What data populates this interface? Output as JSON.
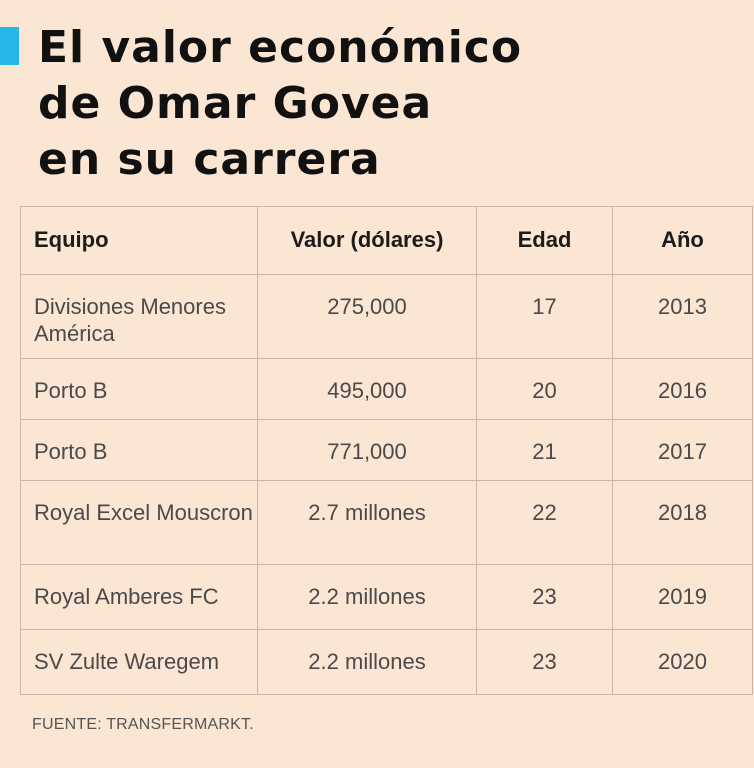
{
  "title": {
    "line1": "El valor económico",
    "line2": "de Omar Govea",
    "line3": "en su carrera"
  },
  "table": {
    "headers": [
      "Equipo",
      "Valor (dólares)",
      "Edad",
      "Año"
    ],
    "rows": [
      {
        "team": "Divisiones Menores América",
        "value": "275,000",
        "age": "17",
        "year": "2013"
      },
      {
        "team": "Porto B",
        "value": "495,000",
        "age": "20",
        "year": "2016"
      },
      {
        "team": "Porto B",
        "value": "771,000",
        "age": "21",
        "year": "2017"
      },
      {
        "team": "Royal Excel Mouscron",
        "value": "2.7 millones",
        "age": "22",
        "year": "2018"
      },
      {
        "team": "Royal Amberes FC",
        "value": "2.2 millones",
        "age": "23",
        "year": "2019"
      },
      {
        "team": "SV Zulte Waregem",
        "value": "2.2 millones",
        "age": "23",
        "year": "2020"
      }
    ]
  },
  "source": "FUENTE: TRANSFERMARKT.",
  "colors": {
    "background": "#fbe5d3",
    "accent": "#25b7e6"
  }
}
